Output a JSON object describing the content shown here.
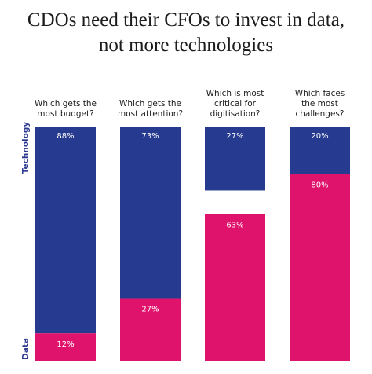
{
  "title": {
    "line1": "CDOs need their CFOs to invest in data,",
    "line2": "not more technologies"
  },
  "colors": {
    "technology": "#263b8f",
    "data": "#e0136c",
    "question_text": "#1c1c1c",
    "axis_label": "#2b3990"
  },
  "chart_data": {
    "type": "bar",
    "stacked": true,
    "normalized": true,
    "categories": [
      [
        "Which gets the",
        "most budget?"
      ],
      [
        "Which gets the",
        "most attention?"
      ],
      [
        "Which is most",
        "critical for",
        "digitisation?"
      ],
      [
        "Which faces",
        "the most",
        "challenges?"
      ]
    ],
    "series": [
      {
        "name": "Technology",
        "values": [
          88,
          73,
          27,
          20
        ],
        "labels": [
          "88%",
          "73%",
          "27%",
          "20%"
        ]
      },
      {
        "name": "Data",
        "values": [
          12,
          27,
          63,
          80
        ],
        "labels": [
          "12%",
          "27%",
          "63%",
          "80%"
        ]
      }
    ],
    "ylim": [
      0,
      100
    ],
    "grid": false,
    "legend": "none"
  }
}
